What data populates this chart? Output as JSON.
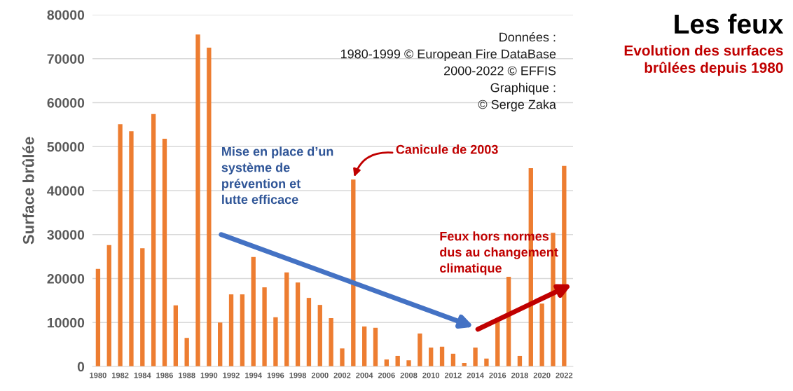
{
  "chart_data": {
    "type": "bar",
    "title": "Les feux",
    "subtitle": "Evolution des surfaces\nbrûlées depuis 1980",
    "ylabel": "Surface brûlée",
    "x": [
      1980,
      1981,
      1982,
      1983,
      1984,
      1985,
      1986,
      1987,
      1988,
      1989,
      1990,
      1991,
      1992,
      1993,
      1994,
      1995,
      1996,
      1997,
      1998,
      1999,
      2000,
      2001,
      2002,
      2003,
      2004,
      2005,
      2006,
      2007,
      2008,
      2009,
      2010,
      2011,
      2012,
      2013,
      2014,
      2015,
      2016,
      2017,
      2018,
      2019,
      2020,
      2021,
      2022
    ],
    "values": [
      22200,
      27600,
      55100,
      53500,
      26900,
      57400,
      51800,
      13900,
      6500,
      75500,
      72500,
      10000,
      16400,
      16400,
      24900,
      18000,
      11200,
      21400,
      19100,
      15600,
      14000,
      11000,
      4100,
      42500,
      9100,
      8800,
      1600,
      2400,
      1400,
      7500,
      4300,
      4500,
      2900,
      800,
      4300,
      1800,
      10500,
      20400,
      2400,
      45100,
      14300,
      30400,
      45600
    ],
    "color": "#ed7d31",
    "xlim": [
      1979.5,
      2022.8
    ],
    "xticks": [
      1980,
      1982,
      1984,
      1986,
      1988,
      1990,
      1992,
      1994,
      1996,
      1998,
      2000,
      2002,
      2004,
      2006,
      2008,
      2010,
      2012,
      2014,
      2016,
      2018,
      2020,
      2022
    ],
    "ylim": [
      0,
      80000
    ],
    "yticks": [
      0,
      10000,
      20000,
      30000,
      40000,
      50000,
      60000,
      70000,
      80000
    ],
    "grid": "y",
    "legend": false,
    "annotations": [
      "Données :\n1980-1999 © European Fire DataBase\n2000-2022 © EFFIS\nGraphique :\n© Serge Zaka",
      {
        "text": "Canicule de 2003",
        "x": 2003,
        "y": 42500
      },
      "Mise en place d’un\nsystème de\nprévention et\nlutte efficace",
      "Feux hors normes\ndus au changement\nclimatique"
    ]
  }
}
